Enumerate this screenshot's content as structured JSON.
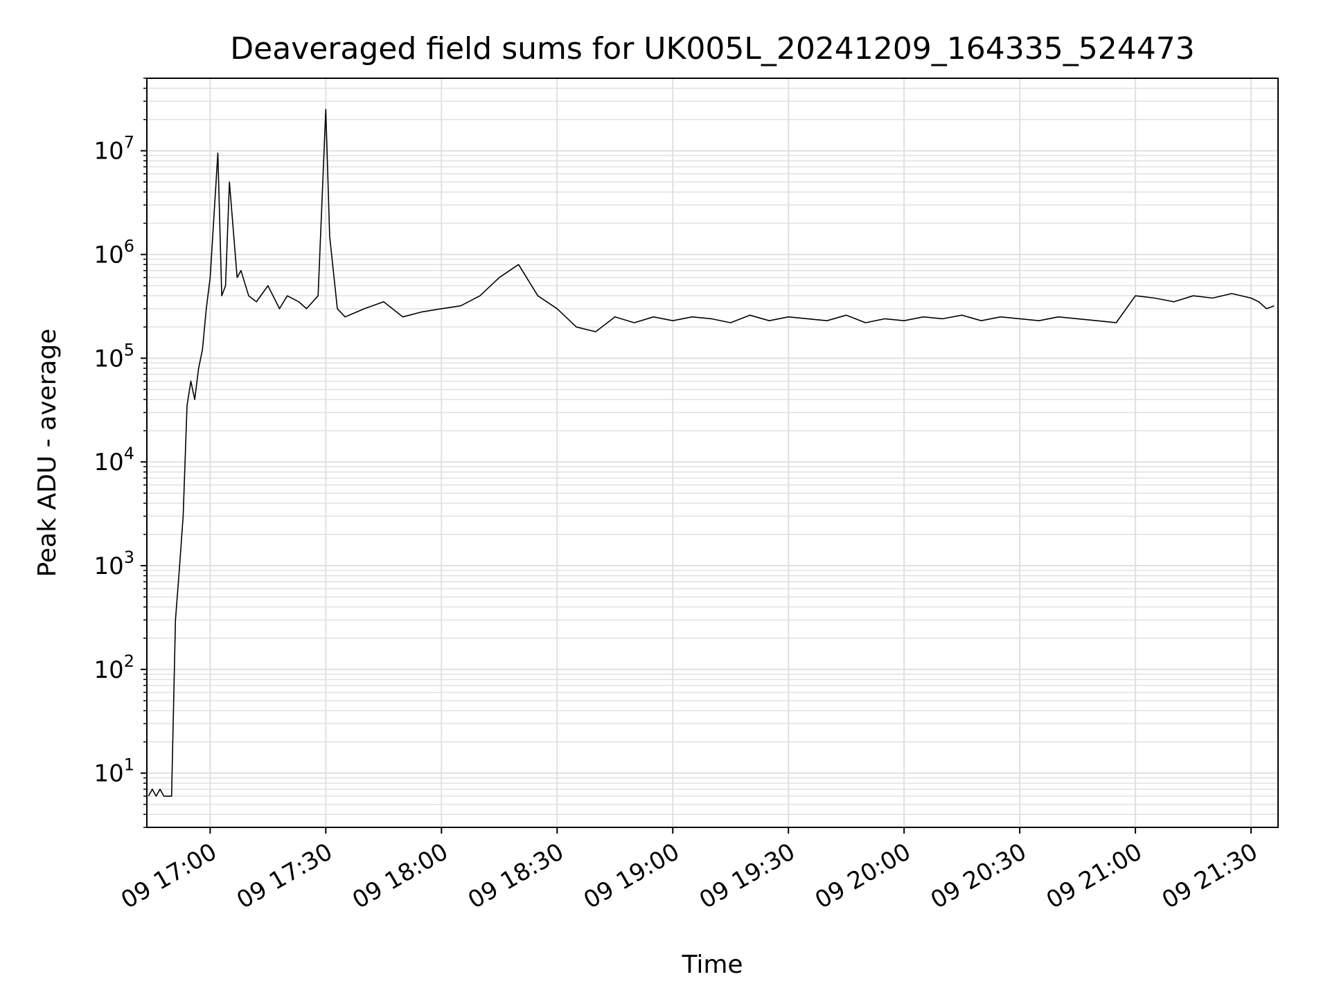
{
  "chart_data": {
    "type": "line",
    "title": "Deaveraged field sums for UK005L_20241209_164335_524473",
    "xlabel": "Time",
    "ylabel": "Peak ADU - average",
    "y_scale": "log",
    "ylim": [
      3,
      50000000
    ],
    "xlim": [
      "2024-12-09 16:43:35",
      "2024-12-09 21:37:00"
    ],
    "grid": true,
    "line_color": "#000000",
    "grid_color": "#e0e0e0",
    "x_ticks": [
      "2024-12-09 17:00",
      "2024-12-09 17:30",
      "2024-12-09 18:00",
      "2024-12-09 18:30",
      "2024-12-09 19:00",
      "2024-12-09 19:30",
      "2024-12-09 20:00",
      "2024-12-09 20:30",
      "2024-12-09 21:00",
      "2024-12-09 21:30"
    ],
    "x_tick_labels": [
      "09 17:00",
      "09 17:30",
      "09 18:00",
      "09 18:30",
      "09 19:00",
      "09 19:30",
      "09 20:00",
      "09 20:30",
      "09 21:00",
      "09 21:30"
    ],
    "y_ticks": [
      10,
      100,
      1000,
      10000,
      100000,
      1000000,
      10000000
    ],
    "y_tick_labels": [
      {
        "base": "10",
        "exp": "1"
      },
      {
        "base": "10",
        "exp": "2"
      },
      {
        "base": "10",
        "exp": "3"
      },
      {
        "base": "10",
        "exp": "4"
      },
      {
        "base": "10",
        "exp": "5"
      },
      {
        "base": "10",
        "exp": "6"
      },
      {
        "base": "10",
        "exp": "7"
      }
    ],
    "series": [
      {
        "x": [
          "2024-12-09 16:44",
          "2024-12-09 16:45",
          "2024-12-09 16:46",
          "2024-12-09 16:47",
          "2024-12-09 16:48",
          "2024-12-09 16:50",
          "2024-12-09 16:51",
          "2024-12-09 16:52",
          "2024-12-09 16:53",
          "2024-12-09 16:54",
          "2024-12-09 16:55",
          "2024-12-09 16:56",
          "2024-12-09 16:57",
          "2024-12-09 16:58",
          "2024-12-09 16:59",
          "2024-12-09 17:00",
          "2024-12-09 17:02",
          "2024-12-09 17:03",
          "2024-12-09 17:04",
          "2024-12-09 17:05",
          "2024-12-09 17:07",
          "2024-12-09 17:08",
          "2024-12-09 17:10",
          "2024-12-09 17:12",
          "2024-12-09 17:15",
          "2024-12-09 17:18",
          "2024-12-09 17:20",
          "2024-12-09 17:23",
          "2024-12-09 17:25",
          "2024-12-09 17:28",
          "2024-12-09 17:30",
          "2024-12-09 17:31",
          "2024-12-09 17:33",
          "2024-12-09 17:35",
          "2024-12-09 17:40",
          "2024-12-09 17:45",
          "2024-12-09 17:50",
          "2024-12-09 17:55",
          "2024-12-09 18:00",
          "2024-12-09 18:05",
          "2024-12-09 18:10",
          "2024-12-09 18:15",
          "2024-12-09 18:20",
          "2024-12-09 18:25",
          "2024-12-09 18:30",
          "2024-12-09 18:35",
          "2024-12-09 18:40",
          "2024-12-09 18:45",
          "2024-12-09 18:50",
          "2024-12-09 18:55",
          "2024-12-09 19:00",
          "2024-12-09 19:05",
          "2024-12-09 19:10",
          "2024-12-09 19:15",
          "2024-12-09 19:20",
          "2024-12-09 19:25",
          "2024-12-09 19:30",
          "2024-12-09 19:35",
          "2024-12-09 19:40",
          "2024-12-09 19:45",
          "2024-12-09 19:50",
          "2024-12-09 19:55",
          "2024-12-09 20:00",
          "2024-12-09 20:05",
          "2024-12-09 20:10",
          "2024-12-09 20:15",
          "2024-12-09 20:20",
          "2024-12-09 20:25",
          "2024-12-09 20:30",
          "2024-12-09 20:35",
          "2024-12-09 20:40",
          "2024-12-09 20:45",
          "2024-12-09 20:50",
          "2024-12-09 20:55",
          "2024-12-09 21:00",
          "2024-12-09 21:05",
          "2024-12-09 21:10",
          "2024-12-09 21:15",
          "2024-12-09 21:20",
          "2024-12-09 21:25",
          "2024-12-09 21:30",
          "2024-12-09 21:32",
          "2024-12-09 21:34",
          "2024-12-09 21:36"
        ],
        "y": [
          6,
          7,
          6,
          7,
          6,
          6,
          300,
          900,
          3000,
          35000,
          60000,
          40000,
          80000,
          120000,
          300000,
          600000,
          9500000,
          400000,
          500000,
          5000000,
          600000,
          700000,
          400000,
          350000,
          500000,
          300000,
          400000,
          350000,
          300000,
          400000,
          25000000,
          1500000,
          300000,
          250000,
          300000,
          350000,
          250000,
          280000,
          300000,
          320000,
          400000,
          600000,
          800000,
          400000,
          300000,
          200000,
          180000,
          250000,
          220000,
          250000,
          230000,
          250000,
          240000,
          220000,
          260000,
          230000,
          250000,
          240000,
          230000,
          260000,
          220000,
          240000,
          230000,
          250000,
          240000,
          260000,
          230000,
          250000,
          240000,
          230000,
          250000,
          240000,
          230000,
          220000,
          400000,
          380000,
          350000,
          400000,
          380000,
          420000,
          380000,
          350000,
          300000,
          320000
        ]
      }
    ]
  }
}
